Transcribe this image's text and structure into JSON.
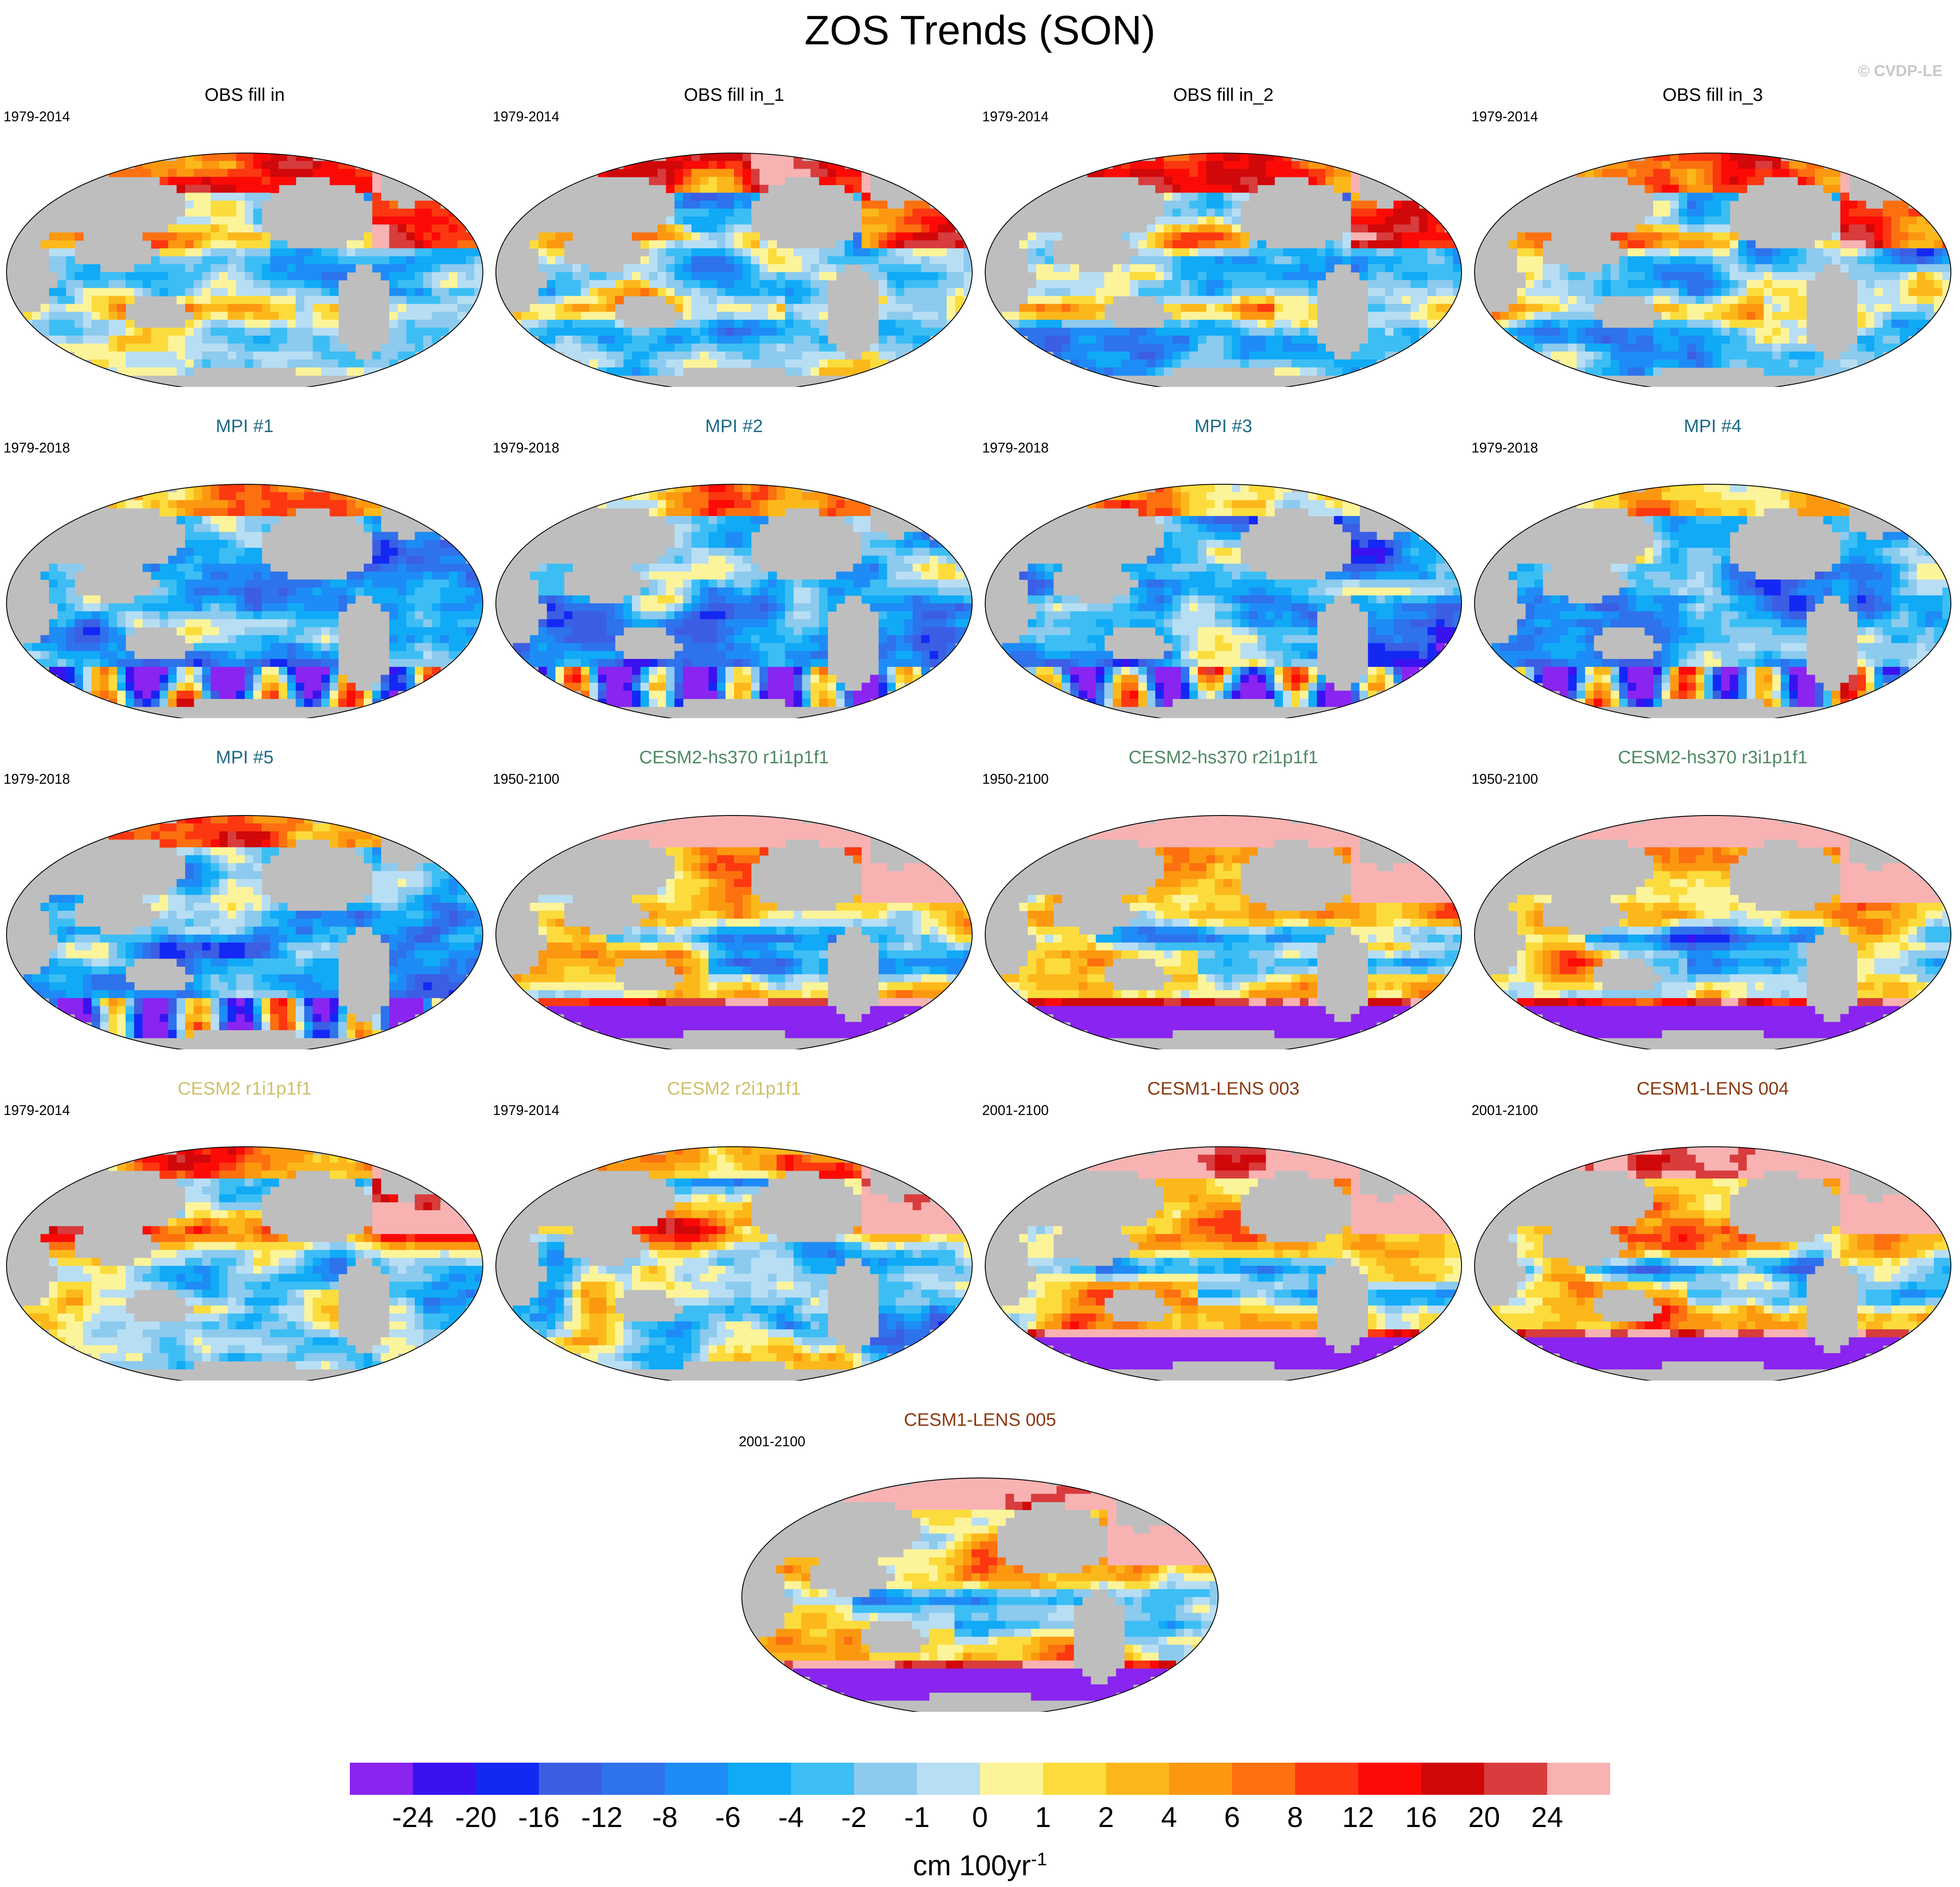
{
  "title": "ZOS Trends (SON)",
  "watermark": "© CVDP-LE",
  "colors": {
    "land": "#bebebe",
    "missing": "#ffffff"
  },
  "palette": [
    "#8a24f0",
    "#3a12f0",
    "#1428f4",
    "#3c5ee4",
    "#2e72ec",
    "#1e8cf6",
    "#10aaf6",
    "#3cbef4",
    "#8ccaee",
    "#b8def4",
    "#fcf49a",
    "#fcdc3c",
    "#fcb81a",
    "#fc9810",
    "#fc7010",
    "#fc3810",
    "#fc0a06",
    "#d0080a",
    "#d83c3c",
    "#f8b2b2"
  ],
  "colorbar_labels": [
    "-24",
    "-20",
    "-16",
    "-12",
    "-8",
    "-6",
    "-4",
    "-2",
    "-1",
    "0",
    "1",
    "2",
    "4",
    "6",
    "8",
    "12",
    "16",
    "20",
    "24"
  ],
  "units": "cm 100yr",
  "units_exp": "-1",
  "panels": [
    {
      "title": "OBS fill in",
      "period": "1979-2014",
      "title_color": "#000000",
      "style": "obs"
    },
    {
      "title": "OBS fill in_1",
      "period": "1979-2014",
      "title_color": "#000000",
      "style": "obs"
    },
    {
      "title": "OBS fill in_2",
      "period": "1979-2014",
      "title_color": "#000000",
      "style": "obs"
    },
    {
      "title": "OBS fill in_3",
      "period": "1979-2014",
      "title_color": "#000000",
      "style": "obs"
    },
    {
      "title": "MPI #1",
      "period": "1979-2018",
      "title_color": "#1e6b88",
      "style": "mpi"
    },
    {
      "title": "MPI #2",
      "period": "1979-2018",
      "title_color": "#1e6b88",
      "style": "mpi"
    },
    {
      "title": "MPI #3",
      "period": "1979-2018",
      "title_color": "#1e6b88",
      "style": "mpi"
    },
    {
      "title": "MPI #4",
      "period": "1979-2018",
      "title_color": "#1e6b88",
      "style": "mpi"
    },
    {
      "title": "MPI #5",
      "period": "1979-2018",
      "title_color": "#1e6b88",
      "style": "mpi"
    },
    {
      "title": "CESM2-hs370 r1i1p1f1",
      "period": "1950-2100",
      "title_color": "#4f8a64",
      "style": "future"
    },
    {
      "title": "CESM2-hs370 r2i1p1f1",
      "period": "1950-2100",
      "title_color": "#4f8a64",
      "style": "future"
    },
    {
      "title": "CESM2-hs370 r3i1p1f1",
      "period": "1950-2100",
      "title_color": "#4f8a64",
      "style": "future"
    },
    {
      "title": "CESM2 r1i1p1f1",
      "period": "1979-2014",
      "title_color": "#cfc06a",
      "style": "cesm2"
    },
    {
      "title": "CESM2 r2i1p1f1",
      "period": "1979-2014",
      "title_color": "#cfc06a",
      "style": "cesm2"
    },
    {
      "title": "CESM1-LENS 003",
      "period": "2001-2100",
      "title_color": "#8c3a12",
      "style": "future"
    },
    {
      "title": "CESM1-LENS 004",
      "period": "2001-2100",
      "title_color": "#8c3a12",
      "style": "future"
    },
    {
      "title": "CESM1-LENS 005",
      "period": "2001-2100",
      "title_color": "#8c3a12",
      "style": "future"
    }
  ]
}
